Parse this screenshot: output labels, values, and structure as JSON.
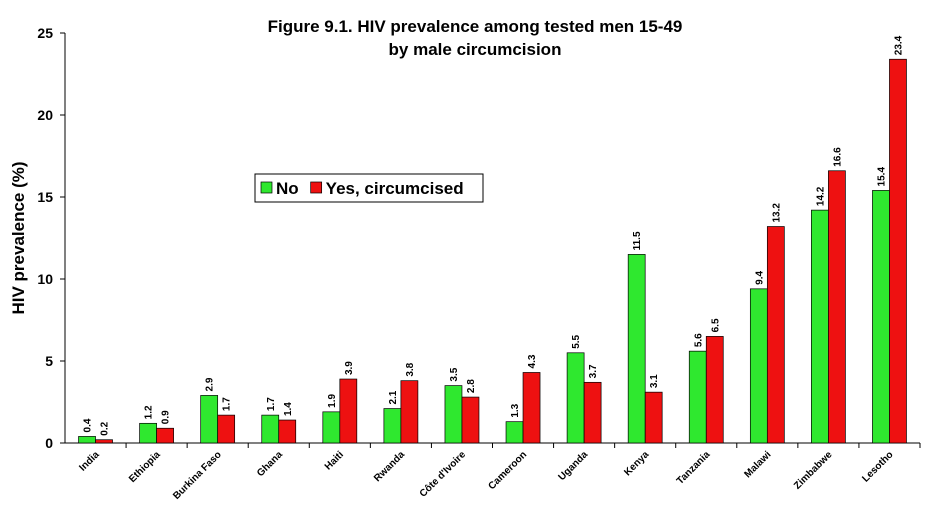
{
  "chart_data": {
    "type": "bar",
    "title": [
      "Figure 9.1. HIV prevalence among tested men 15-49",
      "by male circumcision"
    ],
    "y_label": "HIV prevalence (%)",
    "categories": [
      "India",
      "Ethiopia",
      "Burkina Faso",
      "Ghana",
      "Haiti",
      "Rwanda",
      "Côte d'Ivoire",
      "Cameroon",
      "Uganda",
      "Kenya",
      "Tanzania",
      "Malawi",
      "Zimbabwe",
      "Lesotho"
    ],
    "series": [
      {
        "name": "No",
        "color": "#2fe82f",
        "values": [
          0.4,
          1.2,
          2.9,
          1.7,
          1.9,
          2.1,
          3.5,
          1.3,
          5.5,
          11.5,
          5.6,
          9.4,
          14.2,
          15.4
        ]
      },
      {
        "name": "Yes, circumcised",
        "color": "#ee1111",
        "values": [
          0.2,
          0.9,
          1.7,
          1.4,
          3.9,
          3.8,
          2.8,
          4.3,
          3.7,
          3.1,
          6.5,
          13.2,
          16.6,
          23.4
        ]
      }
    ],
    "ylim": [
      0,
      25
    ],
    "yticks": [
      0,
      5,
      10,
      15,
      20,
      25
    ],
    "grid": false,
    "legend": "upper left"
  }
}
